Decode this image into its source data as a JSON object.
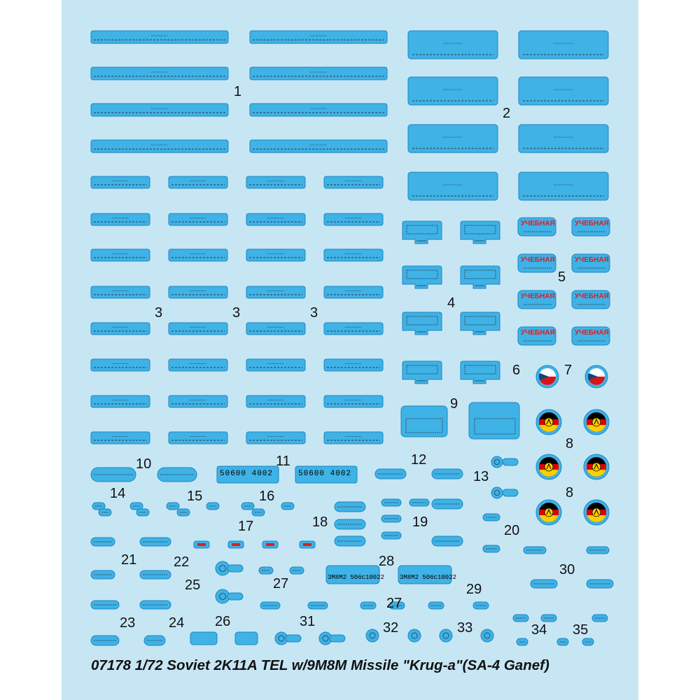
{
  "sheet": {
    "background_color": "#c7e6f4",
    "decal_color": "#3fb2e6",
    "decal_outline_color": "#1f86c0",
    "caption": "07178 1/72 Soviet 2K11A  TEL w/9M8M Missile \"Krug-a\"(SA-4 Ganef)"
  },
  "decal_numbers": [
    {
      "id": "n1",
      "text": "1"
    },
    {
      "id": "n2",
      "text": "2"
    },
    {
      "id": "n3a",
      "text": "3"
    },
    {
      "id": "n3b",
      "text": "3"
    },
    {
      "id": "n3c",
      "text": "3"
    },
    {
      "id": "n4",
      "text": "4"
    },
    {
      "id": "n5",
      "text": "5"
    },
    {
      "id": "n6",
      "text": "6"
    },
    {
      "id": "n7",
      "text": "7"
    },
    {
      "id": "n8a",
      "text": "8"
    },
    {
      "id": "n8b",
      "text": "8"
    },
    {
      "id": "n9",
      "text": "9"
    },
    {
      "id": "n10",
      "text": "10"
    },
    {
      "id": "n11",
      "text": "11"
    },
    {
      "id": "n12",
      "text": "12"
    },
    {
      "id": "n13",
      "text": "13"
    },
    {
      "id": "n14",
      "text": "14"
    },
    {
      "id": "n15",
      "text": "15"
    },
    {
      "id": "n16",
      "text": "16"
    },
    {
      "id": "n17",
      "text": "17"
    },
    {
      "id": "n18",
      "text": "18"
    },
    {
      "id": "n19",
      "text": "19"
    },
    {
      "id": "n20",
      "text": "20"
    },
    {
      "id": "n21",
      "text": "21"
    },
    {
      "id": "n22",
      "text": "22"
    },
    {
      "id": "n23",
      "text": "23"
    },
    {
      "id": "n24",
      "text": "24"
    },
    {
      "id": "n25",
      "text": "25"
    },
    {
      "id": "n26",
      "text": "26"
    },
    {
      "id": "n27a",
      "text": "27"
    },
    {
      "id": "n27b",
      "text": "27"
    },
    {
      "id": "n28",
      "text": "28"
    },
    {
      "id": "n29",
      "text": "29"
    },
    {
      "id": "n30",
      "text": "30"
    },
    {
      "id": "n31",
      "text": "31"
    },
    {
      "id": "n32",
      "text": "32"
    },
    {
      "id": "n33",
      "text": "33"
    },
    {
      "id": "n34",
      "text": "34"
    },
    {
      "id": "n35",
      "text": "35"
    }
  ],
  "decal_texts": {
    "serial_a": "50600 4002",
    "serial_b": "50600 4002",
    "training_label": "УЧЕБНАЯ",
    "missile_code_a": "3M8M2 506c10022",
    "missile_code_b": "3M8M2 506c10022"
  },
  "flags": {
    "czech": {
      "white": "#ffffff",
      "red": "#d7141a",
      "blue": "#11457e"
    },
    "gdr": {
      "black": "#000000",
      "red": "#dd0000",
      "gold": "#ffce00"
    }
  }
}
